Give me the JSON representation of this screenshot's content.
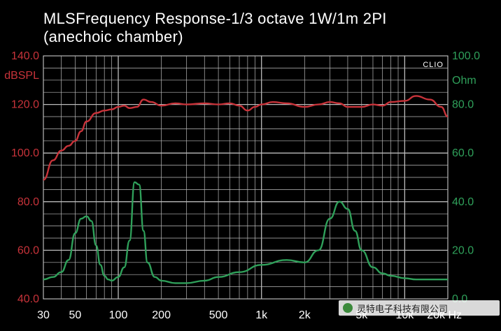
{
  "chart_data": {
    "type": "line",
    "title": "MLSFrequency Response-1/3 octave 1W/1m 2PI",
    "subtitle": "(anechoic chamber)",
    "brand": "CLIO",
    "xscale": "log",
    "xlim": [
      30,
      20000
    ],
    "x_tick_labels": [
      {
        "value": 30,
        "label": "30"
      },
      {
        "value": 50,
        "label": "50"
      },
      {
        "value": 100,
        "label": "100"
      },
      {
        "value": 200,
        "label": "200"
      },
      {
        "value": 500,
        "label": "500"
      },
      {
        "value": 1000,
        "label": "1k"
      },
      {
        "value": 2000,
        "label": "2k"
      },
      {
        "value": 5000,
        "label": "5k"
      },
      {
        "value": 10000,
        "label": "10k"
      },
      {
        "value": 20000,
        "label": "20k Hz"
      }
    ],
    "left_axis": {
      "label": "dBSPL",
      "ylim": [
        40,
        140
      ],
      "ticks": [
        "40.0",
        "60.0",
        "80.0",
        "100.0",
        "120.0",
        "140.0"
      ],
      "color": "#c8333a"
    },
    "right_axis": {
      "label": "Ohm",
      "ylim": [
        0,
        100
      ],
      "ticks": [
        "0.0",
        "20.0",
        "40.0",
        "60.0",
        "80.0",
        "100.0"
      ],
      "color": "#2fa05a"
    },
    "grid": true,
    "series": [
      {
        "axis": "left",
        "color": "#c8333a",
        "x": [
          30,
          35,
          40,
          45,
          50,
          55,
          60,
          70,
          80,
          90,
          100,
          110,
          120,
          135,
          150,
          170,
          200,
          250,
          300,
          400,
          500,
          600,
          700,
          800,
          900,
          1000,
          1200,
          1500,
          2000,
          2500,
          3000,
          3500,
          4000,
          5000,
          6000,
          7000,
          8000,
          10000,
          12000,
          15000,
          18000,
          20000
        ],
        "y": [
          89,
          97,
          101,
          103,
          105,
          109,
          113,
          116.5,
          117.5,
          118,
          119,
          119.5,
          118.5,
          119,
          122,
          121,
          119.5,
          120.5,
          120,
          120.5,
          120,
          120.5,
          119.5,
          117.5,
          119,
          120,
          121,
          120.5,
          119,
          120,
          121,
          120.5,
          119,
          119,
          120,
          119.5,
          121,
          121.5,
          123.5,
          122,
          119,
          115
        ]
      },
      {
        "axis": "right",
        "color": "#2fa05a",
        "x": [
          30,
          35,
          40,
          45,
          50,
          55,
          60,
          65,
          70,
          75,
          80,
          85,
          90,
          100,
          110,
          120,
          130,
          140,
          150,
          160,
          180,
          200,
          250,
          300,
          400,
          500,
          700,
          1000,
          1500,
          2000,
          2500,
          3000,
          3500,
          4000,
          4500,
          5000,
          6000,
          7000,
          8000,
          10000,
          12000,
          15000,
          20000
        ],
        "y": [
          8,
          9,
          11,
          16,
          27,
          33,
          34,
          32,
          22,
          14,
          9.5,
          8,
          7.5,
          9,
          13,
          24,
          48,
          47,
          28,
          15,
          9,
          7.5,
          6.5,
          6.5,
          7.5,
          9,
          11,
          14,
          16,
          15,
          20,
          33,
          40,
          37,
          28,
          20,
          13,
          10.5,
          9.5,
          8.5,
          8,
          8,
          8
        ]
      }
    ]
  },
  "watermark": "灵特电子科技有限公司"
}
